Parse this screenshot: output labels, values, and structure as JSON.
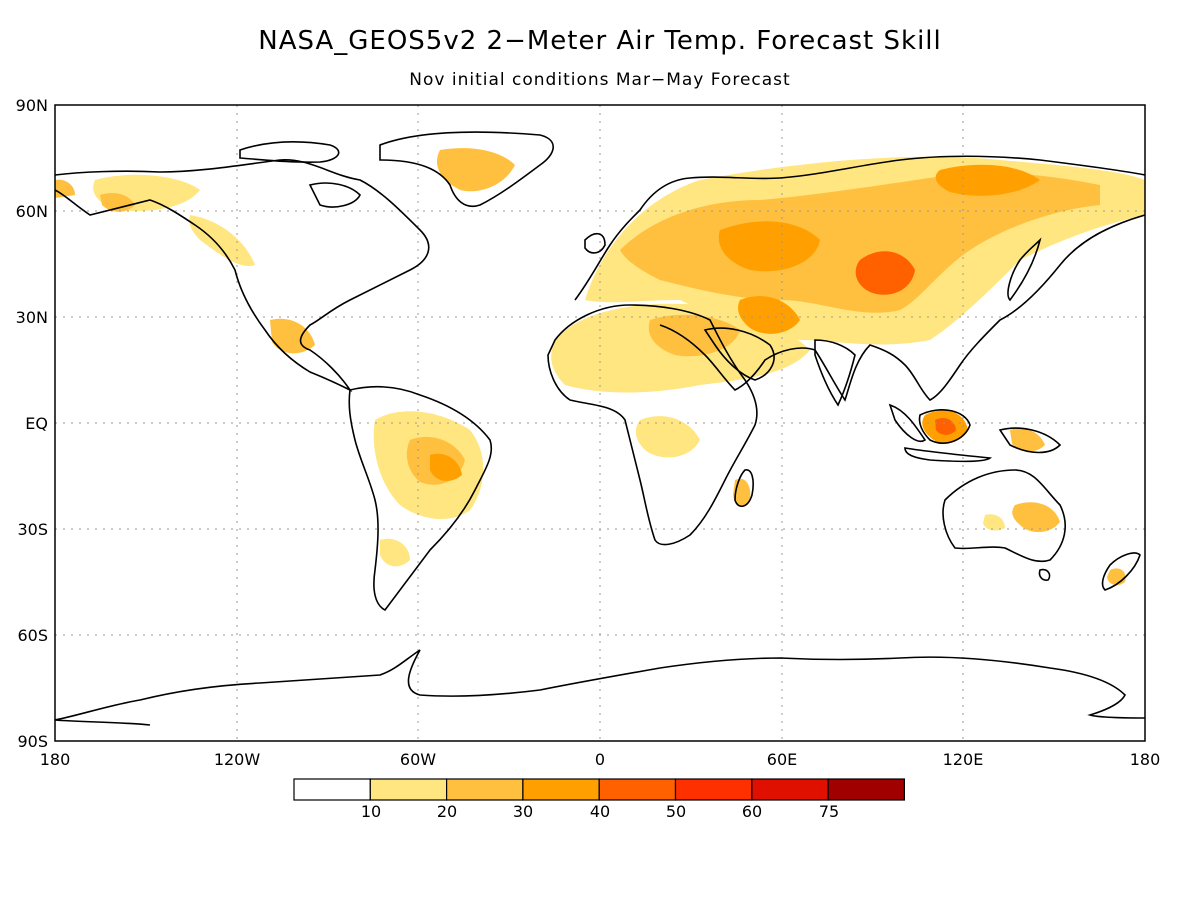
{
  "title": "NASA_GEOS5v2 2−Meter Air Temp. Forecast Skill",
  "subtitle": "Nov initial conditions  Mar−May Forecast",
  "lat_labels": [
    "90N",
    "60N",
    "30N",
    "EQ",
    "30S",
    "60S",
    "90S"
  ],
  "lon_labels": [
    "180",
    "120W",
    "60W",
    "0",
    "60E",
    "120E",
    "180"
  ],
  "colorbar": {
    "colors": [
      "#ffffff",
      "#ffe680",
      "#ffc040",
      "#ffa000",
      "#ff6000",
      "#ff3000",
      "#e01000",
      "#a00000"
    ],
    "tick_labels": [
      "10",
      "20",
      "30",
      "40",
      "50",
      "60",
      "75"
    ]
  },
  "colors": {
    "land_outline": "#000000",
    "grid": "#999999",
    "skill_10_20": "#ffe680",
    "skill_20_30": "#ffc040",
    "skill_30_40": "#ffa000",
    "skill_40_50": "#ff6000"
  }
}
